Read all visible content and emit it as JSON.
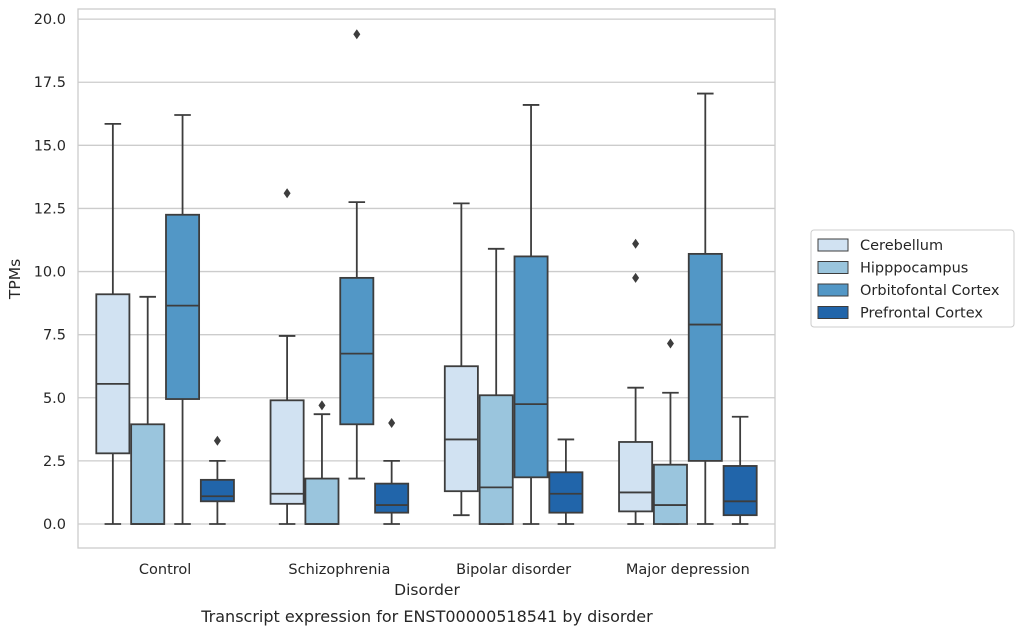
{
  "chart_data": {
    "type": "box",
    "caption": "Transcript expression for ENST00000518541 by disorder",
    "xlabel": "Disorder",
    "ylabel": "TPMs",
    "ylim": [
      -0.95,
      20.4
    ],
    "yticks": [
      0.0,
      2.5,
      5.0,
      7.5,
      10.0,
      12.5,
      15.0,
      17.5,
      20.0
    ],
    "ytick_labels": [
      "0.0",
      "2.5",
      "5.0",
      "7.5",
      "10.0",
      "12.5",
      "15.0",
      "17.5",
      "20.0"
    ],
    "grid": "horizontal",
    "legend_placement": "right",
    "categories": [
      "Control",
      "Schizophrenia",
      "Bipolar disorder",
      "Major depression"
    ],
    "series": [
      {
        "name": "Cerebellum",
        "color": "#d1e2f2",
        "boxes": [
          {
            "whislo": 0.0,
            "q1": 2.8,
            "med": 5.55,
            "q3": 9.1,
            "whishi": 15.85,
            "fliers": []
          },
          {
            "whislo": 0.0,
            "q1": 0.8,
            "med": 1.2,
            "q3": 4.9,
            "whishi": 7.45,
            "fliers": [
              13.1
            ]
          },
          {
            "whislo": 0.35,
            "q1": 1.3,
            "med": 3.35,
            "q3": 6.25,
            "whishi": 12.7,
            "fliers": []
          },
          {
            "whislo": 0.0,
            "q1": 0.5,
            "med": 1.25,
            "q3": 3.25,
            "whishi": 5.4,
            "fliers": [
              9.75,
              11.1
            ]
          }
        ]
      },
      {
        "name": "Hipppocampus",
        "color": "#9ac5dd",
        "boxes": [
          {
            "whislo": 0.0,
            "q1": 0.0,
            "med": 0.0,
            "q3": 3.95,
            "whishi": 9.0,
            "fliers": []
          },
          {
            "whislo": 0.0,
            "q1": 0.0,
            "med": 0.0,
            "q3": 1.8,
            "whishi": 4.35,
            "fliers": [
              4.7
            ]
          },
          {
            "whislo": 0.0,
            "q1": 0.0,
            "med": 1.45,
            "q3": 5.1,
            "whishi": 10.9,
            "fliers": []
          },
          {
            "whislo": 0.0,
            "q1": 0.0,
            "med": 0.75,
            "q3": 2.35,
            "whishi": 5.2,
            "fliers": [
              7.15
            ]
          }
        ]
      },
      {
        "name": "Orbitofontal Cortex",
        "color": "#5297c6",
        "boxes": [
          {
            "whislo": 0.0,
            "q1": 4.95,
            "med": 8.65,
            "q3": 12.25,
            "whishi": 16.2,
            "fliers": []
          },
          {
            "whislo": 1.8,
            "q1": 3.95,
            "med": 6.75,
            "q3": 9.75,
            "whishi": 12.75,
            "fliers": [
              19.4
            ]
          },
          {
            "whislo": 0.0,
            "q1": 1.85,
            "med": 4.75,
            "q3": 10.6,
            "whishi": 16.6,
            "fliers": []
          },
          {
            "whislo": 0.0,
            "q1": 2.5,
            "med": 7.9,
            "q3": 10.7,
            "whishi": 17.05,
            "fliers": []
          }
        ]
      },
      {
        "name": "Prefrontal Cortex",
        "color": "#2165aa",
        "boxes": [
          {
            "whislo": 0.0,
            "q1": 0.9,
            "med": 1.1,
            "q3": 1.75,
            "whishi": 2.5,
            "fliers": [
              3.3
            ]
          },
          {
            "whislo": 0.0,
            "q1": 0.45,
            "med": 0.75,
            "q3": 1.6,
            "whishi": 2.5,
            "fliers": [
              4.0
            ]
          },
          {
            "whislo": 0.0,
            "q1": 0.45,
            "med": 1.2,
            "q3": 2.05,
            "whishi": 3.35,
            "fliers": []
          },
          {
            "whislo": 0.0,
            "q1": 0.35,
            "med": 0.9,
            "q3": 2.3,
            "whishi": 4.25,
            "fliers": []
          }
        ]
      }
    ]
  }
}
